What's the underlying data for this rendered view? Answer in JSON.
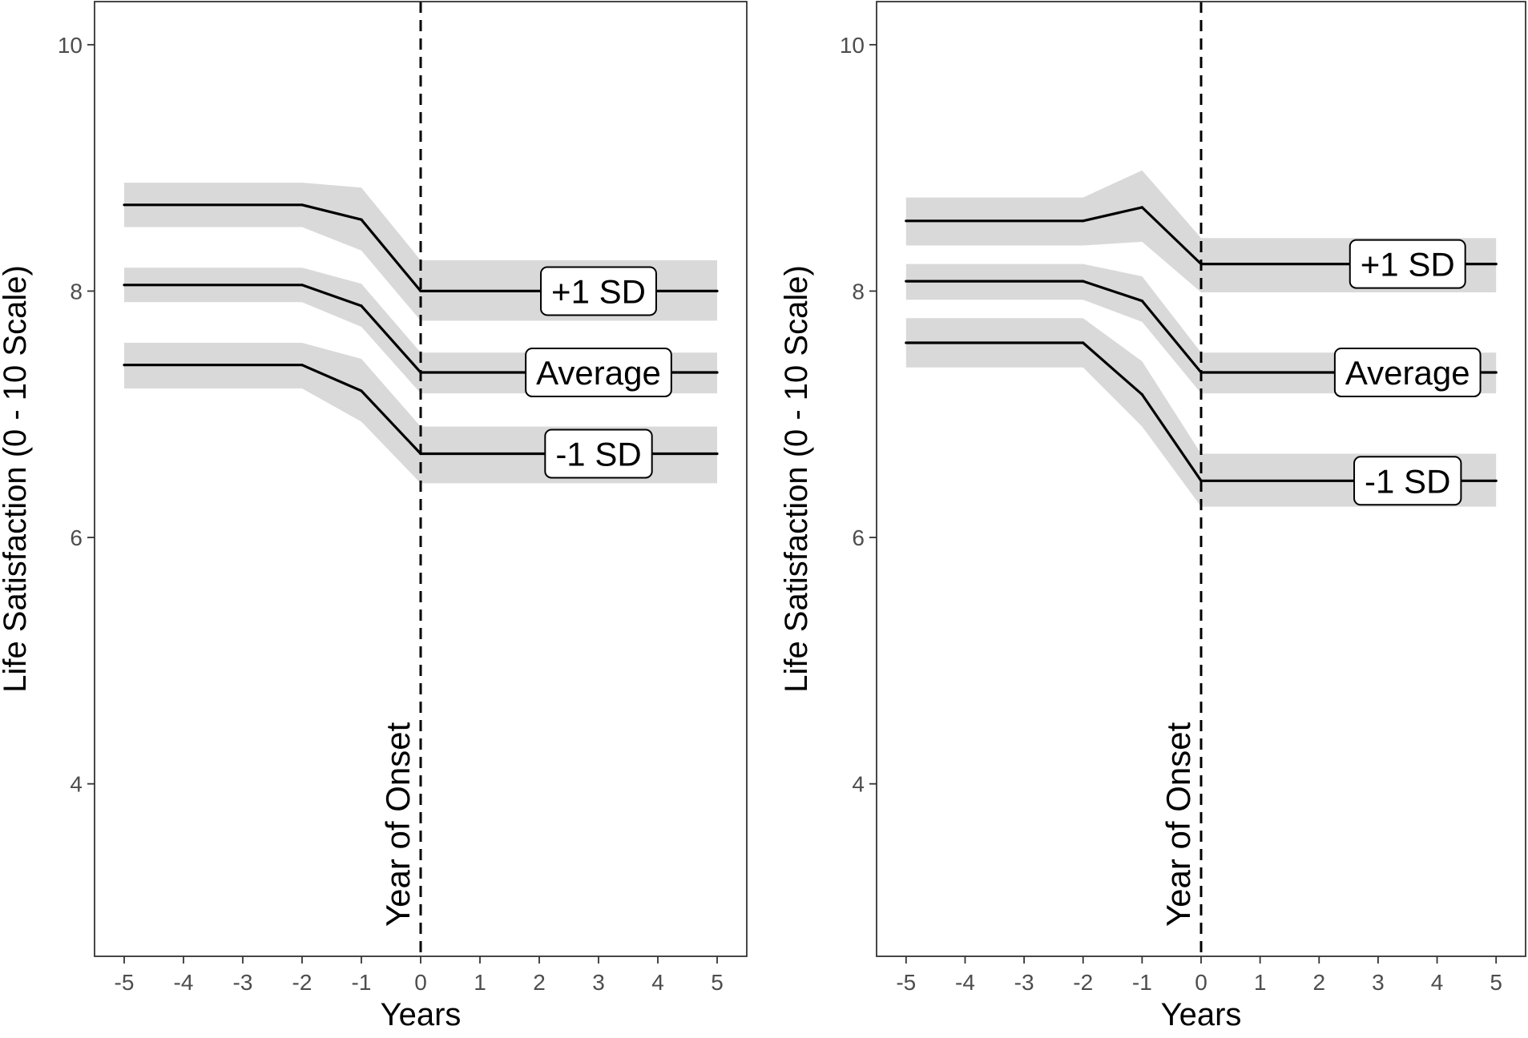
{
  "chart_data": [
    {
      "type": "line",
      "xlabel": "Years",
      "ylabel": "Life Satisfaction (0 - 10 Scale)",
      "xlim": [
        -5.5,
        5.5
      ],
      "ylim": [
        2.6,
        10.35
      ],
      "x_ticks": [
        -5,
        -4,
        -3,
        -2,
        -1,
        0,
        1,
        2,
        3,
        4,
        5
      ],
      "x_tick_labels": [
        "-5",
        "-4",
        "-3",
        "-2",
        "-1",
        "0",
        "1",
        "2",
        "3",
        "4",
        "5"
      ],
      "y_ticks": [
        4,
        6,
        8,
        10
      ],
      "y_tick_labels": [
        "4",
        "6",
        "8",
        "10"
      ],
      "grid": false,
      "onset": {
        "x": 0,
        "label": "Year of Onset"
      },
      "x": [
        -5,
        -2,
        -1,
        0,
        5
      ],
      "series": [
        {
          "name": "+1 SD",
          "values": [
            8.7,
            8.7,
            8.58,
            8.0,
            8.0
          ],
          "lower": [
            8.52,
            8.52,
            8.33,
            7.76,
            7.76
          ],
          "upper": [
            8.88,
            8.88,
            8.84,
            8.25,
            8.25
          ]
        },
        {
          "name": "Average",
          "values": [
            8.05,
            8.05,
            7.88,
            7.34,
            7.34
          ],
          "lower": [
            7.91,
            7.91,
            7.71,
            7.17,
            7.17
          ],
          "upper": [
            8.19,
            8.19,
            8.06,
            7.5,
            7.5
          ]
        },
        {
          "name": "-1 SD",
          "values": [
            7.4,
            7.4,
            7.19,
            6.68,
            6.68
          ],
          "lower": [
            7.21,
            7.21,
            6.94,
            6.44,
            6.44
          ],
          "upper": [
            7.58,
            7.58,
            7.45,
            6.9,
            6.9
          ]
        }
      ],
      "label_x": 3
    },
    {
      "type": "line",
      "xlabel": "Years",
      "ylabel": "Life Satisfaction (0 - 10 Scale)",
      "xlim": [
        -5.5,
        5.5
      ],
      "ylim": [
        2.6,
        10.35
      ],
      "x_ticks": [
        -5,
        -4,
        -3,
        -2,
        -1,
        0,
        1,
        2,
        3,
        4,
        5
      ],
      "x_tick_labels": [
        "-5",
        "-4",
        "-3",
        "-2",
        "-1",
        "0",
        "1",
        "2",
        "3",
        "4",
        "5"
      ],
      "y_ticks": [
        4,
        6,
        8,
        10
      ],
      "y_tick_labels": [
        "4",
        "6",
        "8",
        "10"
      ],
      "grid": false,
      "onset": {
        "x": 0,
        "label": "Year of Onset"
      },
      "x": [
        -5,
        -2,
        -1,
        0,
        5
      ],
      "series": [
        {
          "name": "+1 SD",
          "values": [
            8.57,
            8.57,
            8.68,
            8.22,
            8.22
          ],
          "lower": [
            8.37,
            8.37,
            8.4,
            7.99,
            7.99
          ],
          "upper": [
            8.76,
            8.76,
            8.98,
            8.43,
            8.43
          ]
        },
        {
          "name": "Average",
          "values": [
            8.08,
            8.08,
            7.92,
            7.34,
            7.34
          ],
          "lower": [
            7.93,
            7.93,
            7.75,
            7.17,
            7.17
          ],
          "upper": [
            8.22,
            8.22,
            8.12,
            7.5,
            7.5
          ]
        },
        {
          "name": "-1 SD",
          "values": [
            7.58,
            7.58,
            7.16,
            6.46,
            6.46
          ],
          "lower": [
            7.38,
            7.38,
            6.9,
            6.25,
            6.25
          ],
          "upper": [
            7.78,
            7.78,
            7.43,
            6.68,
            6.68
          ]
        }
      ],
      "label_x": 3.5
    }
  ]
}
